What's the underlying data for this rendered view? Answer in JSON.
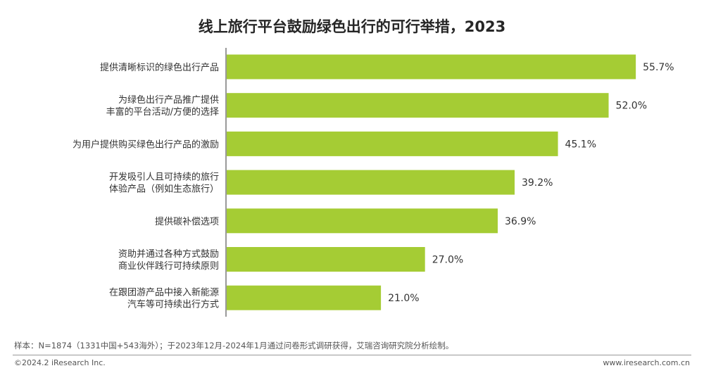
{
  "chart_data": {
    "type": "bar",
    "orientation": "horizontal",
    "title": "线上旅行平台鼓励绿色出行的可行举措，2023",
    "categories": [
      [
        "提供清晰标识的绿色出行产品"
      ],
      [
        "为绿色出行产品推广提供",
        "丰富的平台活动/方便的选择"
      ],
      [
        "为用户提供购买绿色出行产品的激励"
      ],
      [
        "开发吸引人且可持续的旅行",
        "体验产品（例如生态旅行）"
      ],
      [
        "提供碳补偿选项"
      ],
      [
        "资助并通过各种方式鼓励",
        "商业伙伴践行可持续原则"
      ],
      [
        "在跟团游产品中接入新能源",
        "汽车等可持续出行方式"
      ]
    ],
    "values": [
      55.7,
      52.0,
      45.1,
      39.2,
      36.9,
      27.0,
      21.0
    ],
    "value_labels": [
      "55.7%",
      "52.0%",
      "45.1%",
      "39.2%",
      "36.9%",
      "27.0%",
      "21.0%"
    ],
    "xlim": [
      0,
      60
    ],
    "grid": false,
    "bar_color": "#a5cc34"
  },
  "footer": {
    "note": "样本：N=1874（1331中国+543海外）；于2023年12月-2024年1月通过问卷形式调研获得，艾瑞咨询研究院分析绘制。",
    "copyright": "©2024.2 iResearch Inc.",
    "website": "www.iresearch.com.cn"
  }
}
